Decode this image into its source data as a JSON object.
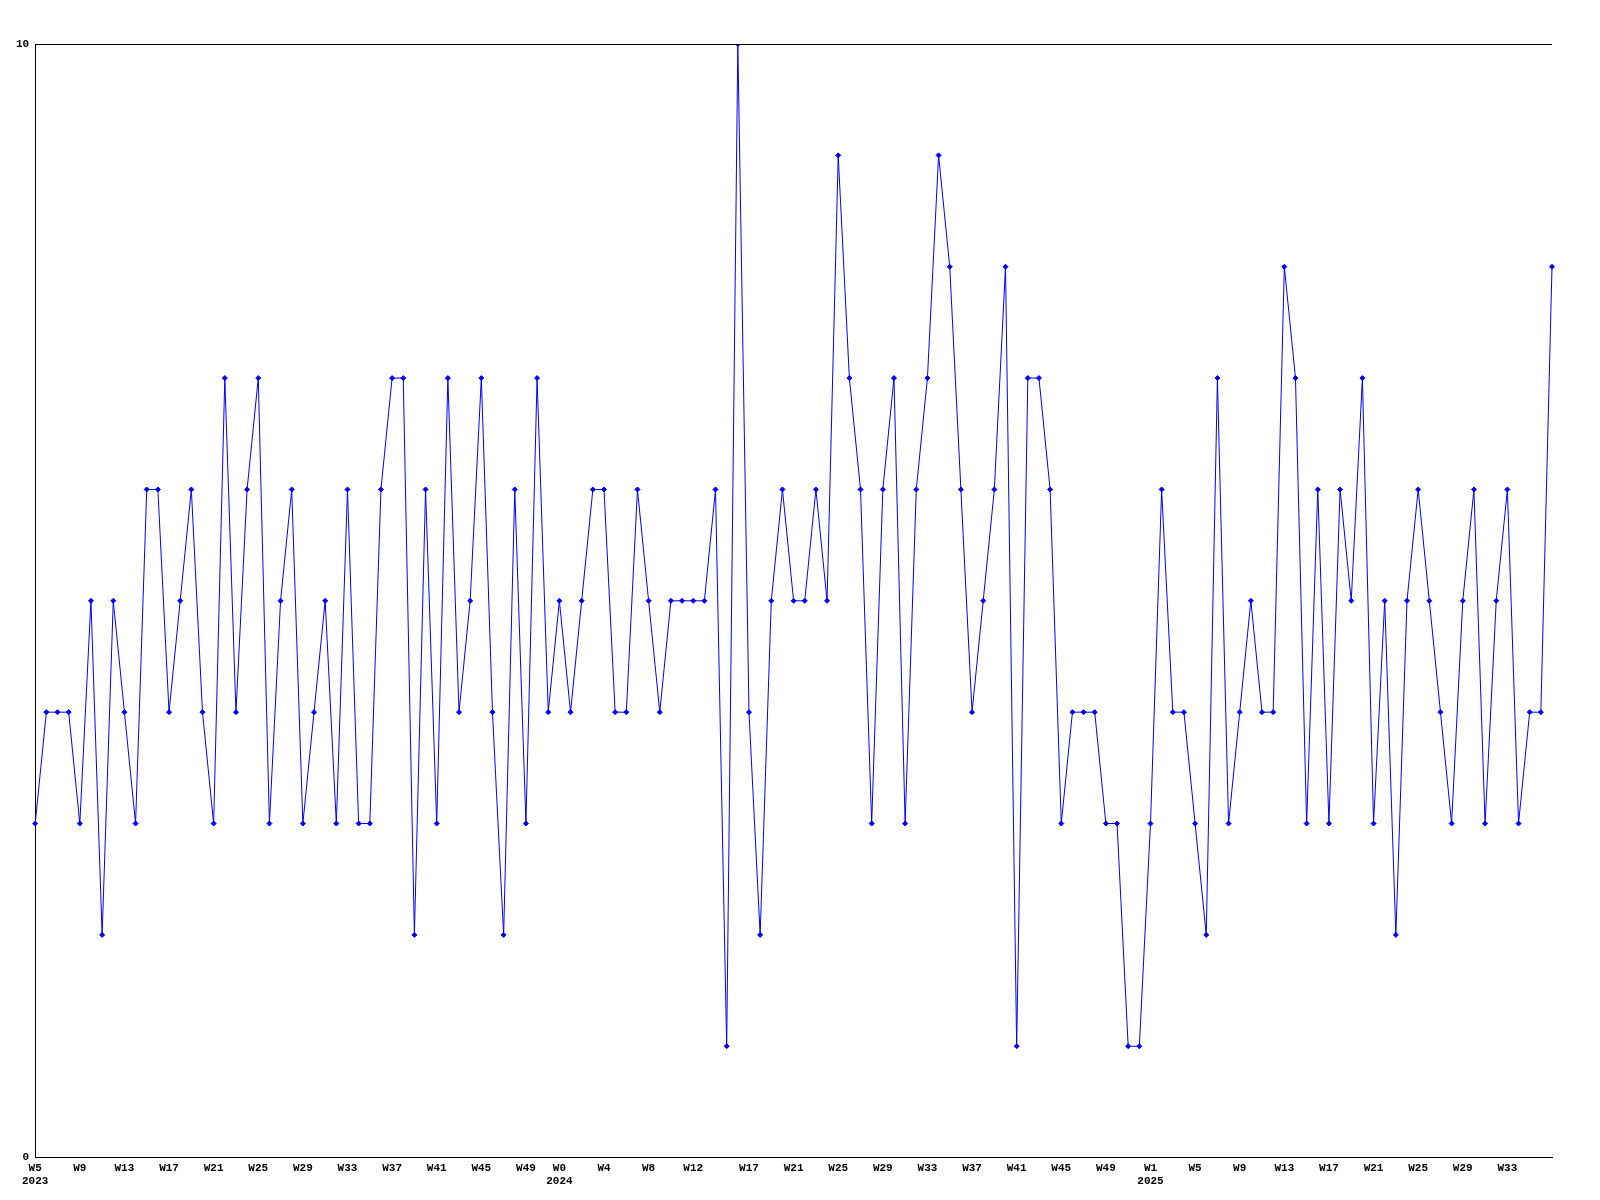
{
  "chart_data": {
    "type": "line",
    "categories": [
      "W5\n2023",
      null,
      null,
      null,
      "W9",
      null,
      null,
      null,
      "W13",
      null,
      null,
      null,
      "W17",
      null,
      null,
      null,
      "W21",
      null,
      null,
      null,
      "W25",
      null,
      null,
      null,
      "W29",
      null,
      null,
      null,
      "W33",
      null,
      null,
      null,
      "W37",
      null,
      null,
      null,
      "W41",
      null,
      null,
      null,
      "W45",
      null,
      null,
      null,
      "W49",
      null,
      null,
      "W0\n2024",
      null,
      null,
      null,
      "W4",
      null,
      null,
      null,
      "W8",
      null,
      null,
      null,
      "W12",
      null,
      null,
      null,
      null,
      "W17",
      null,
      null,
      null,
      "W21",
      null,
      null,
      null,
      "W25",
      null,
      null,
      null,
      "W29",
      null,
      null,
      null,
      "W33",
      null,
      null,
      null,
      "W37",
      null,
      null,
      null,
      "W41",
      null,
      null,
      null,
      "W45",
      null,
      null,
      null,
      "W49",
      null,
      null,
      null,
      "W1\n2025",
      null,
      null,
      null,
      "W5",
      null,
      null,
      null,
      "W9",
      null,
      null,
      null,
      "W13",
      null,
      null,
      null,
      "W17",
      null,
      null,
      null,
      "W21",
      null,
      null,
      null,
      "W25",
      null,
      null,
      null,
      "W29",
      null,
      null,
      null,
      "W33",
      null,
      null,
      null,
      null
    ],
    "series": [
      {
        "color": "#0000ff",
        "values": [
          3,
          4,
          4,
          4,
          3,
          5,
          2,
          5,
          4,
          3,
          6,
          6,
          4,
          5,
          6,
          4,
          3,
          7,
          4,
          6,
          7,
          3,
          5,
          6,
          3,
          4,
          5,
          3,
          6,
          3,
          3,
          6,
          7,
          7,
          2,
          6,
          3,
          7,
          4,
          5,
          7,
          4,
          2,
          6,
          3,
          7,
          4,
          5,
          4,
          5,
          6,
          6,
          4,
          4,
          6,
          5,
          4,
          5,
          5,
          5,
          5,
          6,
          1,
          10,
          4,
          2,
          5,
          6,
          5,
          5,
          6,
          5,
          9,
          7,
          6,
          3,
          6,
          7,
          3,
          6,
          7,
          9,
          8,
          6,
          4,
          5,
          6,
          8,
          1,
          7,
          7,
          6,
          3,
          4,
          4,
          4,
          3,
          3,
          1,
          1,
          3,
          6,
          4,
          4,
          3,
          2,
          7,
          3,
          4,
          5,
          4,
          4,
          8,
          7,
          3,
          6,
          3,
          6,
          5,
          7,
          3,
          5,
          2,
          5,
          6,
          5,
          4,
          3,
          5,
          6,
          3,
          5,
          6,
          3,
          4,
          4,
          8
        ]
      }
    ],
    "ylim": [
      0,
      10
    ],
    "yticks": [
      0,
      10
    ],
    "grid": false,
    "legend": false,
    "marker": "diamond",
    "line_style": "solid"
  }
}
